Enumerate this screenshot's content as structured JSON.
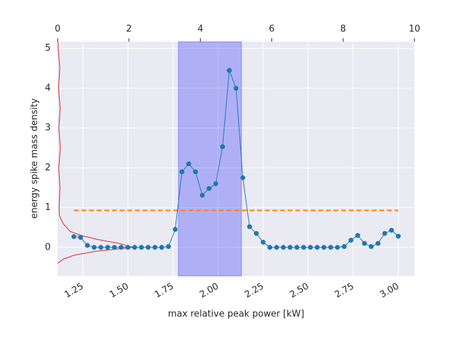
{
  "chart_data": {
    "type": "line",
    "xlabel": "max relative peak power [kW]",
    "ylabel": "energy spike mass density",
    "x": [
      1.2,
      1.2375,
      1.275,
      1.3125,
      1.35,
      1.3875,
      1.425,
      1.4625,
      1.5,
      1.5375,
      1.575,
      1.6125,
      1.65,
      1.6875,
      1.725,
      1.7625,
      1.8,
      1.8375,
      1.875,
      1.9125,
      1.95,
      1.9875,
      2.025,
      2.0625,
      2.1,
      2.1375,
      2.175,
      2.2125,
      2.25,
      2.2875,
      2.325,
      2.3625,
      2.4,
      2.4375,
      2.475,
      2.5125,
      2.55,
      2.5875,
      2.625,
      2.6625,
      2.7,
      2.7375,
      2.775,
      2.8125,
      2.85,
      2.8875,
      2.925,
      2.9625,
      3.0
    ],
    "series": [
      {
        "color": "#1f77b4",
        "values": [
          0.27,
          0.25,
          0.05,
          0,
          0,
          0,
          0,
          0,
          0,
          0,
          0,
          0,
          0,
          0,
          0.02,
          0.45,
          1.9,
          2.1,
          1.9,
          1.31,
          1.48,
          1.6,
          2.53,
          4.45,
          4.0,
          1.75,
          0.52,
          0.35,
          0.13,
          0,
          0,
          0,
          0,
          0,
          0,
          0,
          0,
          0,
          0,
          0,
          0.02,
          0.18,
          0.3,
          0.1,
          0.02,
          0.1,
          0.35,
          0.43,
          0.28
        ]
      }
    ],
    "density": {
      "color": "#d62728",
      "y": [
        -0.4,
        -0.3,
        -0.2,
        -0.1,
        0,
        0.1,
        0.2,
        0.3,
        0.4,
        0.6,
        0.8,
        1.0,
        1.5,
        2.0,
        2.5,
        3.0,
        3.5,
        4.0,
        4.5,
        5.0,
        5.17
      ],
      "x": [
        1.11,
        1.14,
        1.2,
        1.32,
        1.53,
        1.45,
        1.33,
        1.24,
        1.18,
        1.14,
        1.12,
        1.118,
        1.123,
        1.116,
        1.125,
        1.117,
        1.124,
        1.115,
        1.122,
        1.113,
        1.112
      ]
    },
    "hline": {
      "y": 0.93,
      "xmin": 1.2,
      "xmax": 3.0,
      "color": "#ff7f0e"
    },
    "span": {
      "xmin": 1.78,
      "xmax": 2.13,
      "color": "#0000ff"
    },
    "xlim": [
      1.11,
      3.09
    ],
    "xticks": [
      1.25,
      {
        "value": 1.5,
        "label": "1.50"
      },
      1.75,
      {
        "value": 2,
        "label": "2.00"
      },
      2.25,
      {
        "value": 2.5,
        "label": "2.50"
      },
      2.75,
      {
        "value": 3,
        "label": "3.00"
      }
    ],
    "x2lim": [
      0,
      10
    ],
    "x2ticks": [
      0,
      2,
      4,
      6,
      8,
      10
    ],
    "ylim": [
      -0.72,
      5.17
    ],
    "yticks": [
      0,
      1,
      2,
      3,
      4,
      5
    ],
    "grid": true
  }
}
